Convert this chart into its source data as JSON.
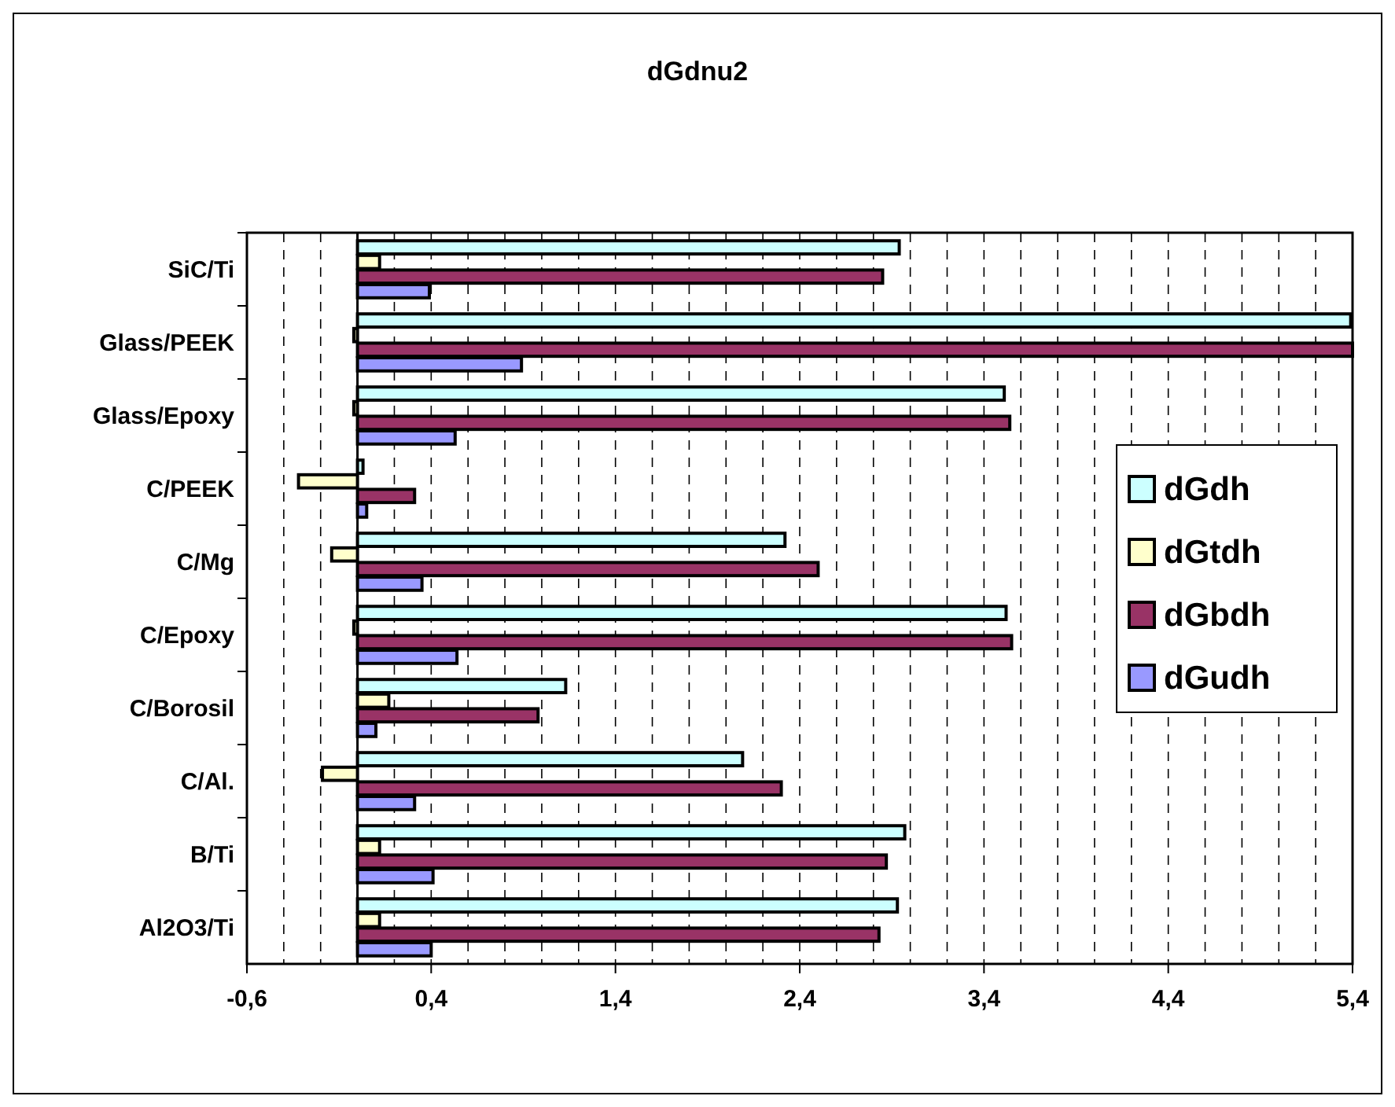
{
  "chart_data": {
    "type": "bar",
    "orientation": "horizontal",
    "title": "dGdnu2",
    "categories": [
      "SiC/Ti",
      "Glass/PEEK",
      "Glass/Epoxy",
      "C/PEEK",
      "C/Mg",
      "C/Epoxy",
      "C/Borosil",
      "C/Al.",
      "B/Ti",
      "Al2O3/Ti"
    ],
    "series": [
      {
        "name": "dGdh",
        "color": "#ccffff",
        "values": [
          2.94,
          5.39,
          3.51,
          0.03,
          2.32,
          3.52,
          1.13,
          2.09,
          2.97,
          2.93
        ]
      },
      {
        "name": "dGtdh",
        "color": "#ffffcc",
        "values": [
          0.12,
          -0.02,
          -0.02,
          -0.32,
          -0.14,
          -0.02,
          0.17,
          -0.19,
          0.12,
          0.12
        ]
      },
      {
        "name": "dGbdh",
        "color": "#993366",
        "values": [
          2.85,
          5.4,
          3.54,
          0.31,
          2.5,
          3.55,
          0.98,
          2.3,
          2.87,
          2.83
        ]
      },
      {
        "name": "dGudh",
        "color": "#9999ff",
        "values": [
          0.39,
          0.89,
          0.53,
          0.05,
          0.35,
          0.54,
          0.1,
          0.31,
          0.41,
          0.4
        ]
      }
    ],
    "xlim": [
      -0.6,
      5.4
    ],
    "xticks": [
      {
        "value": -0.6,
        "label": "-0,6"
      },
      {
        "value": -0.4,
        "label": null
      },
      {
        "value": -0.2,
        "label": null
      },
      {
        "value": 0,
        "label": null
      },
      {
        "value": 0.2,
        "label": null
      },
      {
        "value": 0.4,
        "label": "0,4"
      },
      {
        "value": 0.6,
        "label": null
      },
      {
        "value": 0.8,
        "label": null
      },
      {
        "value": 1,
        "label": null
      },
      {
        "value": 1.2,
        "label": null
      },
      {
        "value": 1.4,
        "label": "1,4"
      },
      {
        "value": 1.6,
        "label": null
      },
      {
        "value": 1.8,
        "label": null
      },
      {
        "value": 2,
        "label": null
      },
      {
        "value": 2.2,
        "label": null
      },
      {
        "value": 2.4,
        "label": "2,4"
      },
      {
        "value": 2.6,
        "label": null
      },
      {
        "value": 2.8,
        "label": null
      },
      {
        "value": 3,
        "label": null
      },
      {
        "value": 3.2,
        "label": null
      },
      {
        "value": 3.4,
        "label": "3,4"
      },
      {
        "value": 3.6,
        "label": null
      },
      {
        "value": 3.8,
        "label": null
      },
      {
        "value": 4,
        "label": null
      },
      {
        "value": 4.2,
        "label": null
      },
      {
        "value": 4.4,
        "label": "4,4"
      },
      {
        "value": 4.6,
        "label": null
      },
      {
        "value": 4.8,
        "label": null
      },
      {
        "value": 5,
        "label": null
      },
      {
        "value": 5.2,
        "label": null
      },
      {
        "value": 5.4,
        "label": "5,4"
      }
    ],
    "grid": "x",
    "legend": "right"
  }
}
